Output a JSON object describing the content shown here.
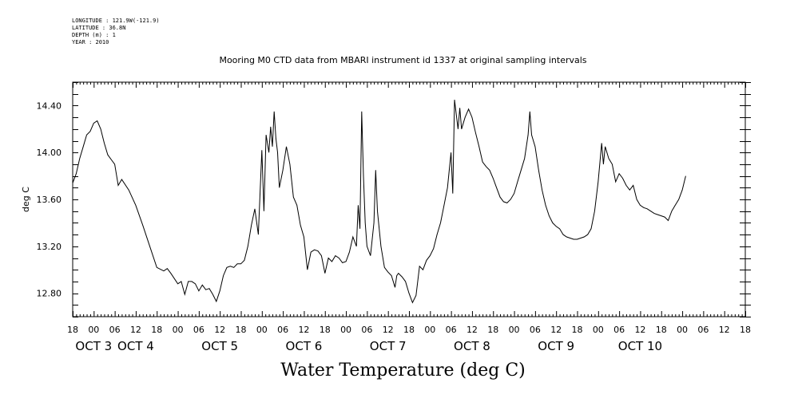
{
  "meta": {
    "lines": [
      "LONGITUDE : 121.9W(-121.9)",
      "LATITUDE : 36.8N",
      "DEPTH (m) : 1",
      "YEAR : 2010"
    ]
  },
  "chart_title": "Mooring M0 CTD data from MBARI instrument id 1337 at original sampling intervals",
  "main_title": "Water Temperature (deg C)",
  "chart_data": {
    "type": "line",
    "title": "Mooring M0 CTD data from MBARI instrument id 1337 at original sampling intervals",
    "xlabel": "",
    "ylabel": "deg C",
    "ylim": [
      12.6,
      14.6
    ],
    "xlim_hours": [
      -6,
      186
    ],
    "y_ticks": [
      "12.80",
      "13.20",
      "13.60",
      "14.00",
      "14.40"
    ],
    "x_hour_labels": [
      "18",
      "00",
      "06",
      "12",
      "18",
      "00",
      "06",
      "12",
      "18",
      "00",
      "06",
      "12",
      "18",
      "00",
      "06",
      "12",
      "18",
      "00",
      "06",
      "12",
      "18",
      "00",
      "06",
      "12",
      "18",
      "00",
      "06",
      "12",
      "18",
      "00",
      "06",
      "12",
      "18"
    ],
    "x_day_labels": [
      {
        "label": "OCT  3",
        "hour": 0
      },
      {
        "label": "OCT  4",
        "hour": 12
      },
      {
        "label": "OCT  5",
        "hour": 36
      },
      {
        "label": "OCT  6",
        "hour": 60
      },
      {
        "label": "OCT  7",
        "hour": 84
      },
      {
        "label": "OCT  8",
        "hour": 108
      },
      {
        "label": "OCT  9",
        "hour": 132
      },
      {
        "label": "OCT 10",
        "hour": 156
      }
    ],
    "series": [
      {
        "color": "#000000",
        "points": [
          [
            -6,
            13.74
          ],
          [
            -5,
            13.82
          ],
          [
            -4,
            13.95
          ],
          [
            -3,
            14.05
          ],
          [
            -2,
            14.15
          ],
          [
            -1,
            14.18
          ],
          [
            0,
            14.25
          ],
          [
            1,
            14.27
          ],
          [
            2,
            14.2
          ],
          [
            3,
            14.08
          ],
          [
            4,
            13.98
          ],
          [
            5,
            13.94
          ],
          [
            6,
            13.9
          ],
          [
            7,
            13.72
          ],
          [
            8,
            13.77
          ],
          [
            10,
            13.68
          ],
          [
            12,
            13.55
          ],
          [
            14,
            13.38
          ],
          [
            16,
            13.2
          ],
          [
            18,
            13.02
          ],
          [
            20,
            12.99
          ],
          [
            21,
            13.01
          ],
          [
            22,
            12.97
          ],
          [
            24,
            12.88
          ],
          [
            25,
            12.9
          ],
          [
            26,
            12.79
          ],
          [
            27,
            12.9
          ],
          [
            28,
            12.9
          ],
          [
            29,
            12.88
          ],
          [
            30,
            12.82
          ],
          [
            31,
            12.87
          ],
          [
            32,
            12.83
          ],
          [
            33,
            12.84
          ],
          [
            34,
            12.79
          ],
          [
            35,
            12.73
          ],
          [
            36,
            12.82
          ],
          [
            37,
            12.95
          ],
          [
            38,
            13.02
          ],
          [
            39,
            13.03
          ],
          [
            40,
            13.02
          ],
          [
            41,
            13.05
          ],
          [
            42,
            13.05
          ],
          [
            43,
            13.08
          ],
          [
            44,
            13.2
          ],
          [
            45,
            13.38
          ],
          [
            46,
            13.52
          ],
          [
            47,
            13.3
          ],
          [
            48,
            14.02
          ],
          [
            48.6,
            13.5
          ],
          [
            49.2,
            14.15
          ],
          [
            50,
            14.0
          ],
          [
            50.5,
            14.22
          ],
          [
            51,
            14.05
          ],
          [
            51.5,
            14.35
          ],
          [
            52,
            14.12
          ],
          [
            52.5,
            14.0
          ],
          [
            53,
            13.7
          ],
          [
            54,
            13.85
          ],
          [
            55,
            14.05
          ],
          [
            56,
            13.9
          ],
          [
            57,
            13.62
          ],
          [
            58,
            13.55
          ],
          [
            59,
            13.38
          ],
          [
            60,
            13.28
          ],
          [
            61,
            13.0
          ],
          [
            62,
            13.15
          ],
          [
            63,
            13.17
          ],
          [
            64,
            13.16
          ],
          [
            65,
            13.12
          ],
          [
            66,
            12.97
          ],
          [
            67,
            13.1
          ],
          [
            68,
            13.07
          ],
          [
            69,
            13.12
          ],
          [
            70,
            13.1
          ],
          [
            71,
            13.06
          ],
          [
            72,
            13.07
          ],
          [
            73,
            13.15
          ],
          [
            74,
            13.28
          ],
          [
            75,
            13.2
          ],
          [
            75.5,
            13.55
          ],
          [
            76,
            13.35
          ],
          [
            76.5,
            14.35
          ],
          [
            77,
            13.8
          ],
          [
            77.5,
            13.4
          ],
          [
            78,
            13.2
          ],
          [
            79,
            13.12
          ],
          [
            80,
            13.4
          ],
          [
            80.5,
            13.85
          ],
          [
            81,
            13.5
          ],
          [
            82,
            13.2
          ],
          [
            83,
            13.02
          ],
          [
            84,
            12.98
          ],
          [
            85,
            12.95
          ],
          [
            86,
            12.85
          ],
          [
            86.5,
            12.95
          ],
          [
            87,
            12.97
          ],
          [
            88,
            12.94
          ],
          [
            89,
            12.9
          ],
          [
            90,
            12.8
          ],
          [
            91,
            12.72
          ],
          [
            92,
            12.78
          ],
          [
            93,
            13.03
          ],
          [
            94,
            13.0
          ],
          [
            95,
            13.08
          ],
          [
            96,
            13.12
          ],
          [
            97,
            13.18
          ],
          [
            98,
            13.3
          ],
          [
            99,
            13.4
          ],
          [
            100,
            13.55
          ],
          [
            101,
            13.7
          ],
          [
            102,
            14.0
          ],
          [
            102.5,
            13.65
          ],
          [
            103,
            14.45
          ],
          [
            104,
            14.2
          ],
          [
            104.5,
            14.38
          ],
          [
            105,
            14.2
          ],
          [
            106,
            14.3
          ],
          [
            107,
            14.37
          ],
          [
            108,
            14.3
          ],
          [
            109,
            14.17
          ],
          [
            110,
            14.05
          ],
          [
            111,
            13.92
          ],
          [
            112,
            13.88
          ],
          [
            113,
            13.85
          ],
          [
            114,
            13.78
          ],
          [
            115,
            13.7
          ],
          [
            116,
            13.62
          ],
          [
            117,
            13.58
          ],
          [
            118,
            13.57
          ],
          [
            119,
            13.6
          ],
          [
            120,
            13.65
          ],
          [
            121,
            13.75
          ],
          [
            122,
            13.85
          ],
          [
            123,
            13.95
          ],
          [
            124,
            14.15
          ],
          [
            124.5,
            14.35
          ],
          [
            125,
            14.15
          ],
          [
            126,
            14.05
          ],
          [
            127,
            13.85
          ],
          [
            128,
            13.68
          ],
          [
            129,
            13.55
          ],
          [
            130,
            13.46
          ],
          [
            131,
            13.4
          ],
          [
            132,
            13.37
          ],
          [
            133,
            13.35
          ],
          [
            134,
            13.3
          ],
          [
            135,
            13.28
          ],
          [
            136,
            13.27
          ],
          [
            137,
            13.26
          ],
          [
            138,
            13.26
          ],
          [
            139,
            13.27
          ],
          [
            140,
            13.28
          ],
          [
            141,
            13.3
          ],
          [
            142,
            13.35
          ],
          [
            143,
            13.5
          ],
          [
            144,
            13.75
          ],
          [
            145,
            14.08
          ],
          [
            145.5,
            13.9
          ],
          [
            146,
            14.05
          ],
          [
            147,
            13.95
          ],
          [
            148,
            13.9
          ],
          [
            149,
            13.75
          ],
          [
            150,
            13.82
          ],
          [
            151,
            13.78
          ],
          [
            152,
            13.72
          ],
          [
            153,
            13.68
          ],
          [
            154,
            13.72
          ],
          [
            155,
            13.6
          ],
          [
            156,
            13.55
          ],
          [
            157,
            13.53
          ],
          [
            158,
            13.52
          ],
          [
            159,
            13.5
          ],
          [
            160,
            13.48
          ],
          [
            161,
            13.47
          ],
          [
            162,
            13.46
          ],
          [
            163,
            13.45
          ],
          [
            164,
            13.42
          ],
          [
            165,
            13.5
          ],
          [
            166,
            13.55
          ],
          [
            167,
            13.6
          ],
          [
            168,
            13.68
          ],
          [
            169,
            13.8
          ]
        ]
      }
    ]
  }
}
